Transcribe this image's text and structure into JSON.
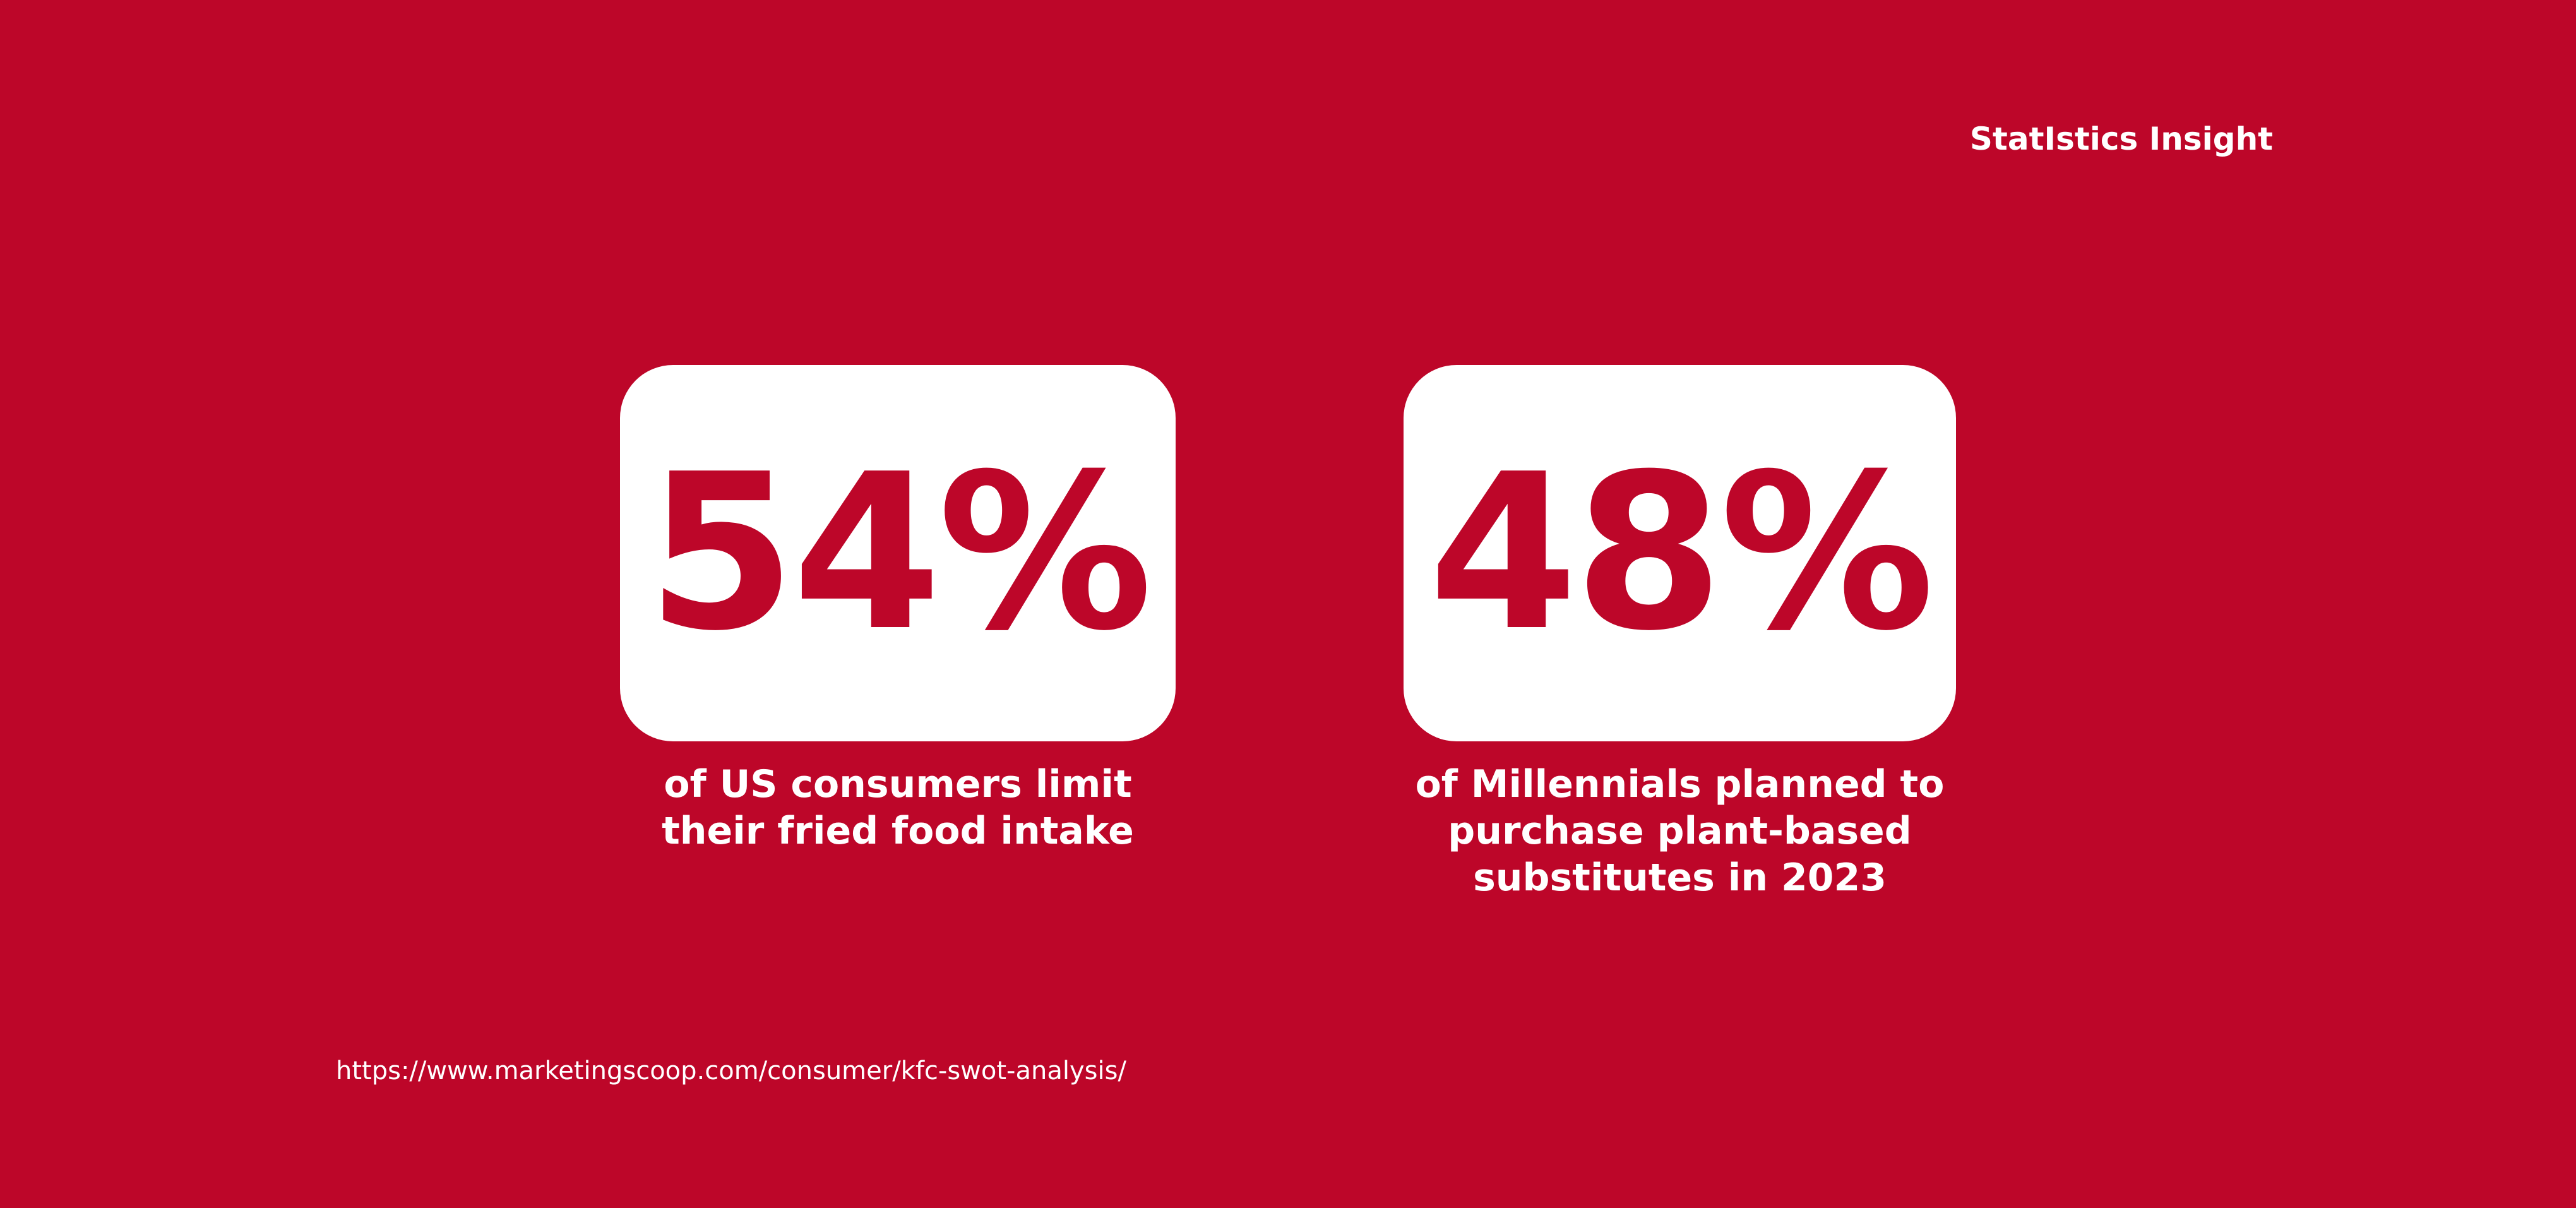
{
  "heading": "StatIstics Insight",
  "stats": [
    {
      "value": "54%",
      "description_lines": [
        "of US consumers limit",
        "their fried food intake"
      ]
    },
    {
      "value": "48%",
      "description_lines": [
        "of Millennials planned to",
        "purchase plant-based",
        "substitutes in 2023"
      ]
    }
  ],
  "source_url": "https://www.marketingscoop.com/consumer/kfc-swot-analysis/",
  "colors": {
    "background": "#bd0629",
    "card": "#ffffff",
    "text": "#ffffff"
  }
}
